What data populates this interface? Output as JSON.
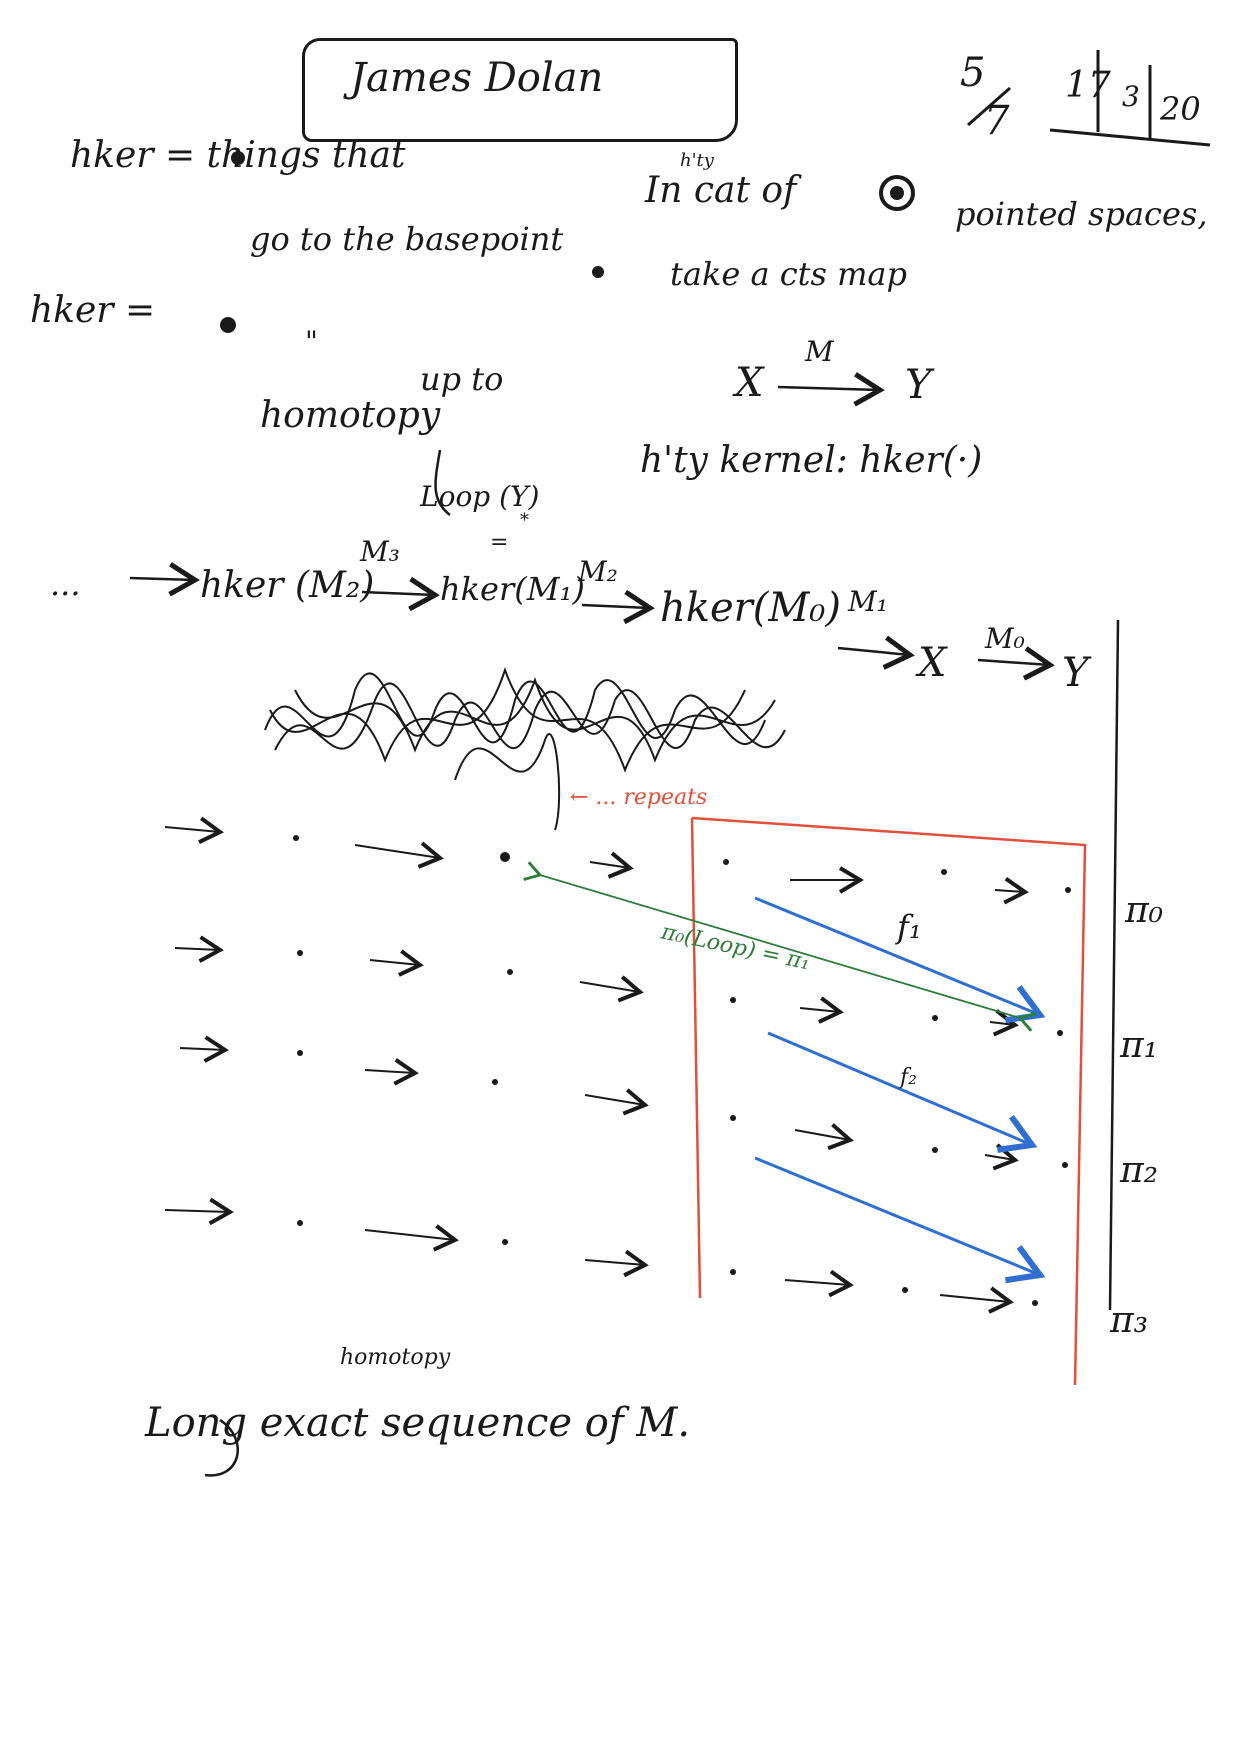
{
  "header": {
    "name": "James Dolan",
    "date_fraction_num": "5",
    "date_fraction_den": "7",
    "date_day": "17",
    "date_month": "3",
    "date_year": "20"
  },
  "notes": {
    "line1_left": "hker = things that",
    "line1_right_sup": "h'ty",
    "line1_right": "In  cat of",
    "line1_right_end": "pointed spaces,",
    "line2_left": "go to the basepoint",
    "line2_right": "take a cts map",
    "line3_left": "hker =",
    "line3_ditto": "\"",
    "line4_left": "up to",
    "map_x": "X",
    "map_label": "M",
    "map_y": "Y",
    "line5_left": "homotopy",
    "line5_right": "h'ty kernel: hker(·)",
    "loop_label": "Loop (Y)",
    "loop_star": "*",
    "loop_equals": "=",
    "seq_dots": "...",
    "seq_hker_m2": "hker (M₂)",
    "seq_m3": "M₃",
    "seq_hker_m1": "hker(M₁)",
    "seq_m2": "M₂",
    "seq_hker_m0": "hker(M₀)",
    "seq_m1": "M₁",
    "seq_x": "X",
    "seq_m0": "M₀",
    "seq_y": "Y",
    "repeats": "← ... repeats",
    "pi_loop": "π₀(Loop) = π₁",
    "f1": "f₁",
    "f2": "f₂",
    "pi0": "π₀",
    "pi1": "π₁",
    "pi2": "π₂",
    "pi3": "π₃",
    "bottom_sup": "homotopy",
    "bottom_line": "Long exact sequence of M."
  },
  "colors": {
    "ink": "#1a1a1a",
    "red_box": "#e0503a",
    "blue_arrows": "#2e6fd1",
    "green_arrow": "#2e7d3a"
  }
}
